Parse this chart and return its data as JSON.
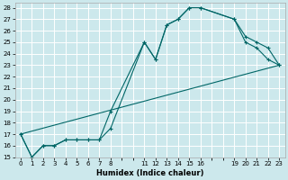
{
  "xlabel": "Humidex (Indice chaleur)",
  "bg_color": "#cce8ec",
  "grid_color": "#ffffff",
  "line_color": "#006666",
  "line1_x": [
    0,
    1,
    2,
    3,
    4,
    5,
    6,
    7,
    8,
    11,
    12,
    13,
    14,
    15,
    16,
    19,
    20,
    21,
    22,
    23
  ],
  "line1_y": [
    17,
    15,
    16,
    16,
    16.5,
    16.5,
    16.5,
    16.5,
    19,
    25,
    23.5,
    26.5,
    27,
    28,
    28,
    27,
    25.5,
    25,
    24.5,
    23
  ],
  "line2_x": [
    0,
    1,
    2,
    3,
    4,
    5,
    6,
    7,
    8,
    11,
    12,
    13,
    14,
    15,
    16,
    19,
    20,
    21,
    22,
    23
  ],
  "line2_y": [
    17,
    15,
    16,
    16,
    16.5,
    16.5,
    16.5,
    16.5,
    17.5,
    25,
    23.5,
    26.5,
    27,
    28,
    28,
    27,
    25,
    24.5,
    23.5,
    23
  ],
  "line3_x": [
    0,
    23
  ],
  "line3_y": [
    17,
    23
  ],
  "xlim": [
    -0.5,
    23.5
  ],
  "ylim": [
    15,
    28.4
  ],
  "xtick_positions": [
    0,
    1,
    2,
    3,
    4,
    5,
    6,
    7,
    8,
    11,
    12,
    13,
    14,
    15,
    16,
    19,
    20,
    21,
    22,
    23
  ],
  "xtick_labels": [
    "0",
    "1",
    "2",
    "3",
    "4",
    "5",
    "6",
    "7",
    "8",
    "11",
    "12",
    "13",
    "14",
    "15",
    "16",
    "19",
    "20",
    "21",
    "22",
    "23"
  ],
  "ytick_positions": [
    15,
    16,
    17,
    18,
    19,
    20,
    21,
    22,
    23,
    24,
    25,
    26,
    27,
    28
  ],
  "ytick_labels": [
    "15",
    "16",
    "17",
    "18",
    "19",
    "20",
    "21",
    "22",
    "23",
    "24",
    "25",
    "26",
    "27",
    "28"
  ]
}
